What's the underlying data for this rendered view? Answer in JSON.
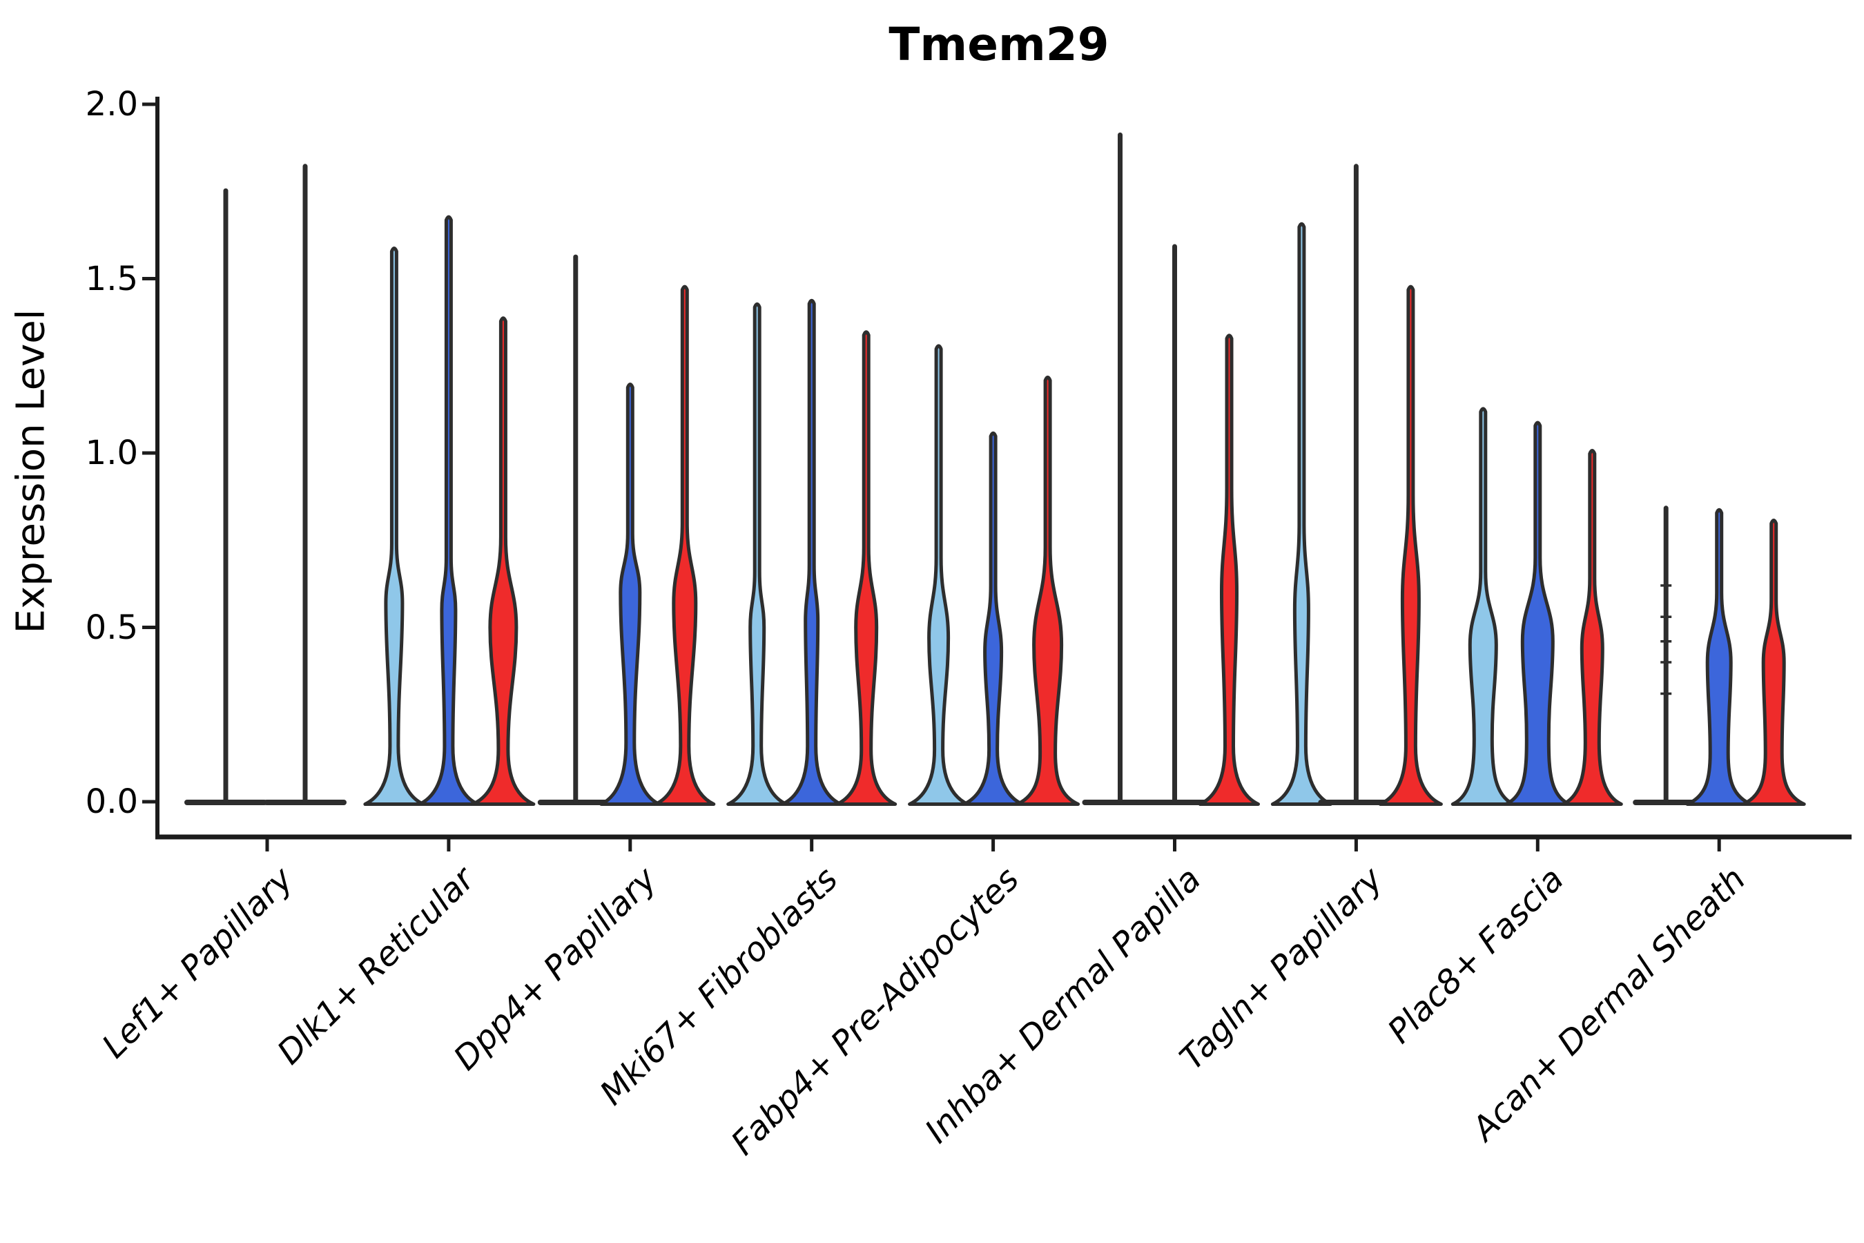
{
  "title": "Tmem29",
  "axes": {
    "ylabel": "Expression Level",
    "ytick_labels": [
      "0.0",
      "0.5",
      "1.0",
      "1.5",
      "2.0"
    ],
    "ytick_values": [
      0,
      0.5,
      1.0,
      1.5,
      2.0
    ],
    "ylim": [
      0,
      2.0
    ]
  },
  "palette": {
    "light_blue": "#8FC7E9",
    "blue": "#3C66DB",
    "red": "#EF2B2B",
    "outline": "#2D2D2D",
    "axis": "#1C1C1C"
  },
  "chart_data": {
    "type": "violin",
    "title": "Tmem29",
    "ylabel": "Expression Level",
    "ylim": [
      0,
      2.0
    ],
    "grid": false,
    "legend": "none",
    "categories": [
      "Lef1+ Papillary",
      "Dlk1+ Reticular",
      "Dpp4+ Papillary",
      "Mki67+ Fibroblasts",
      "Fabp4+ Pre-Adipocytes",
      "Inhba+ Dermal Papilla",
      "Tagln+ Papillary",
      "Plac8+ Fascia",
      "Acan+ Dermal Sheath"
    ],
    "series": [
      {
        "id": "light-blue",
        "color_key": "light_blue"
      },
      {
        "id": "blue",
        "color_key": "blue"
      },
      {
        "id": "red",
        "color_key": "red"
      }
    ],
    "note": "Each violin: most density at expression 0 (flat base); some violins show a mid bulge; 'spike' violins are near-zero width lines reaching their max value.",
    "groups": [
      {
        "category": "Lef1+ Papillary",
        "violins": [
          {
            "series": 0,
            "shape": "spike",
            "max": 1.76,
            "offset": -60,
            "base_hw": 60
          },
          {
            "series": 1,
            "shape": "spike",
            "max": 1.83,
            "offset": 55,
            "base_hw": 60
          }
        ]
      },
      {
        "category": "Dlk1+ Reticular",
        "violins": [
          {
            "series": 0,
            "shape": "body",
            "max": 1.59,
            "offset": -79,
            "base_hw": 42,
            "neck": [
              0.16,
              6
            ],
            "bulge": [
              0.4,
              0.57,
              0.74,
              12
            ]
          },
          {
            "series": 1,
            "shape": "body",
            "max": 1.68,
            "offset": 0,
            "base_hw": 42,
            "neck": [
              0.16,
              6
            ],
            "bulge": [
              0.4,
              0.55,
              0.7,
              10
            ]
          },
          {
            "series": 2,
            "shape": "body",
            "max": 1.39,
            "offset": 79,
            "base_hw": 44,
            "neck": [
              0.15,
              7
            ],
            "bulge": [
              0.26,
              0.5,
              0.76,
              19
            ]
          }
        ]
      },
      {
        "category": "Dpp4+ Papillary",
        "violins": [
          {
            "series": 0,
            "shape": "spike",
            "max": 1.57,
            "offset": -79,
            "base_hw": 55
          },
          {
            "series": 1,
            "shape": "body",
            "max": 1.2,
            "offset": 0,
            "base_hw": 42,
            "neck": [
              0.17,
              6
            ],
            "bulge": [
              0.42,
              0.6,
              0.77,
              14
            ]
          },
          {
            "series": 2,
            "shape": "body",
            "max": 1.48,
            "offset": 79,
            "base_hw": 42,
            "neck": [
              0.16,
              6
            ],
            "bulge": [
              0.33,
              0.57,
              0.8,
              16
            ]
          }
        ]
      },
      {
        "category": "Mki67+ Fibroblasts",
        "violins": [
          {
            "series": 0,
            "shape": "body",
            "max": 1.43,
            "offset": -79,
            "base_hw": 42,
            "neck": [
              0.16,
              6
            ],
            "bulge": [
              0.33,
              0.5,
              0.66,
              10
            ]
          },
          {
            "series": 1,
            "shape": "body",
            "max": 1.44,
            "offset": 0,
            "base_hw": 42,
            "neck": [
              0.16,
              6
            ],
            "bulge": [
              0.36,
              0.52,
              0.68,
              9
            ]
          },
          {
            "series": 2,
            "shape": "body",
            "max": 1.35,
            "offset": 79,
            "base_hw": 42,
            "neck": [
              0.15,
              7
            ],
            "bulge": [
              0.28,
              0.5,
              0.73,
              15
            ]
          }
        ]
      },
      {
        "category": "Fabp4+ Pre-Adipocytes",
        "violins": [
          {
            "series": 0,
            "shape": "body",
            "max": 1.31,
            "offset": -79,
            "base_hw": 42,
            "neck": [
              0.15,
              6
            ],
            "bulge": [
              0.24,
              0.47,
              0.7,
              14
            ]
          },
          {
            "series": 1,
            "shape": "body",
            "max": 1.06,
            "offset": 0,
            "base_hw": 42,
            "neck": [
              0.15,
              6
            ],
            "bulge": [
              0.24,
              0.43,
              0.62,
              12
            ]
          },
          {
            "series": 2,
            "shape": "body",
            "max": 1.22,
            "offset": 79,
            "base_hw": 44,
            "neck": [
              0.14,
              11
            ],
            "bulge": [
              0.2,
              0.45,
              0.73,
              20
            ]
          }
        ]
      },
      {
        "category": "Inhba+ Dermal Papilla",
        "violins": [
          {
            "series": 0,
            "shape": "spike",
            "max": 1.92,
            "offset": -79,
            "base_hw": 55
          },
          {
            "series": 1,
            "shape": "spike",
            "max": 1.6,
            "offset": 0,
            "base_hw": 55
          },
          {
            "series": 2,
            "shape": "body",
            "max": 1.34,
            "offset": 79,
            "base_hw": 42,
            "neck": [
              0.16,
              6
            ],
            "bulge": [
              0.36,
              0.6,
              0.9,
              11
            ]
          }
        ]
      },
      {
        "category": "Tagln+ Papillary",
        "violins": [
          {
            "series": 0,
            "shape": "body",
            "max": 1.66,
            "offset": -79,
            "base_hw": 42,
            "neck": [
              0.16,
              6
            ],
            "bulge": [
              0.35,
              0.55,
              0.8,
              10
            ]
          },
          {
            "series": 1,
            "shape": "spike",
            "max": 1.83,
            "offset": 0,
            "base_hw": 55
          },
          {
            "series": 2,
            "shape": "body",
            "max": 1.48,
            "offset": 79,
            "base_hw": 44,
            "neck": [
              0.16,
              7
            ],
            "bulge": [
              0.33,
              0.58,
              0.88,
              12
            ]
          }
        ]
      },
      {
        "category": "Plac8+ Fascia",
        "violins": [
          {
            "series": 0,
            "shape": "body",
            "max": 1.13,
            "offset": -79,
            "base_hw": 44,
            "neck": [
              0.18,
              13
            ],
            "bulge": [
              0.25,
              0.45,
              0.66,
              19
            ]
          },
          {
            "series": 1,
            "shape": "body",
            "max": 1.09,
            "offset": 0,
            "base_hw": 46,
            "neck": [
              0.18,
              16
            ],
            "bulge": [
              0.22,
              0.46,
              0.7,
              22
            ]
          },
          {
            "series": 2,
            "shape": "body",
            "max": 1.01,
            "offset": 79,
            "base_hw": 42,
            "neck": [
              0.17,
              10
            ],
            "bulge": [
              0.22,
              0.44,
              0.64,
              15
            ]
          }
        ]
      },
      {
        "category": "Acan+ Dermal Sheath",
        "violins": [
          {
            "series": 0,
            "shape": "spike",
            "max": 0.85,
            "offset": -77,
            "base_hw": 48,
            "point_ticks": [
              0.62,
              0.53,
              0.46,
              0.4,
              0.31
            ]
          },
          {
            "series": 1,
            "shape": "body",
            "max": 0.84,
            "offset": 0,
            "base_hw": 46,
            "neck": [
              0.14,
              13
            ],
            "bulge": [
              0.18,
              0.4,
              0.6,
              17
            ]
          },
          {
            "series": 2,
            "shape": "body",
            "max": 0.81,
            "offset": 79,
            "base_hw": 44,
            "neck": [
              0.14,
              12
            ],
            "bulge": [
              0.18,
              0.4,
              0.58,
              15
            ]
          }
        ]
      }
    ]
  }
}
